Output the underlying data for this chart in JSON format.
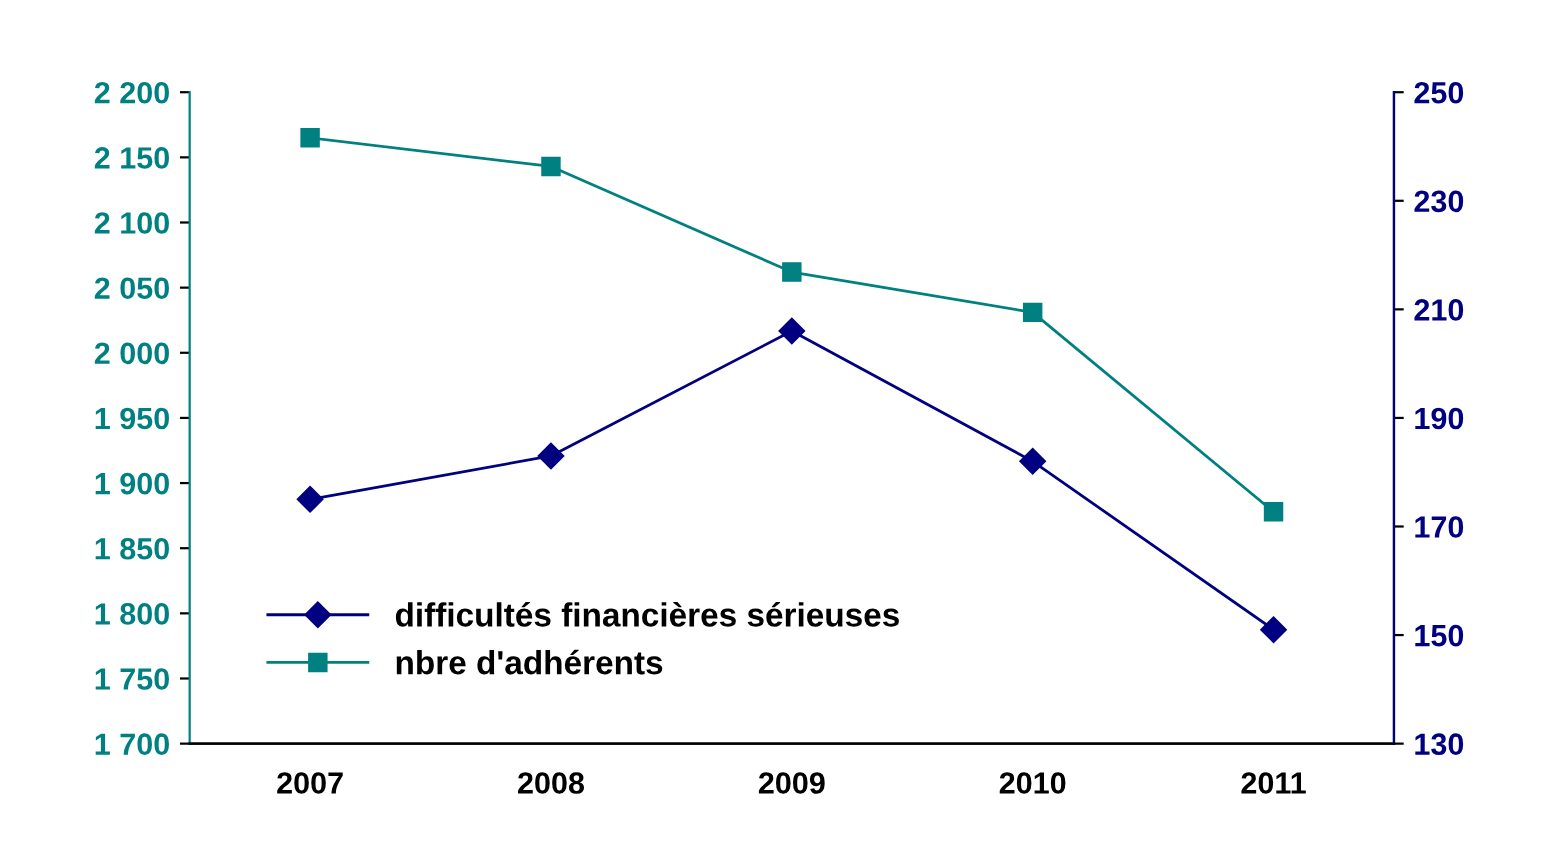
{
  "chart_data": {
    "type": "line",
    "categories": [
      "2007",
      "2008",
      "2009",
      "2010",
      "2011"
    ],
    "series": [
      {
        "name": "difficultés financières sérieuses",
        "color": "#000080",
        "values": [
          175,
          183,
          206,
          182,
          151
        ],
        "axis": "y2",
        "marker": "diamond"
      },
      {
        "name": "nbre d'adhérents",
        "color": "#008080",
        "values": [
          2165,
          2143,
          2062,
          2031,
          1878
        ],
        "marker": "square"
      }
    ],
    "ylim": [
      1700,
      2200
    ],
    "yticks": [
      {
        "value": 1700,
        "label": "1 700"
      },
      {
        "value": 1750,
        "label": "1 750"
      },
      {
        "value": 1800,
        "label": "1 800"
      },
      {
        "value": 1850,
        "label": "1 850"
      },
      {
        "value": 1900,
        "label": "1 900"
      },
      {
        "value": 1950,
        "label": "1 950"
      },
      {
        "value": 2000,
        "label": "2 000"
      },
      {
        "value": 2050,
        "label": "2 050"
      },
      {
        "value": 2100,
        "label": "2 100"
      },
      {
        "value": 2150,
        "label": "2 150"
      },
      {
        "value": 2200,
        "label": "2 200"
      }
    ],
    "y2lim": [
      130,
      250
    ],
    "y2ticks": [
      130,
      150,
      170,
      190,
      210,
      230,
      250
    ],
    "grid": false,
    "legend": "bottom left"
  }
}
